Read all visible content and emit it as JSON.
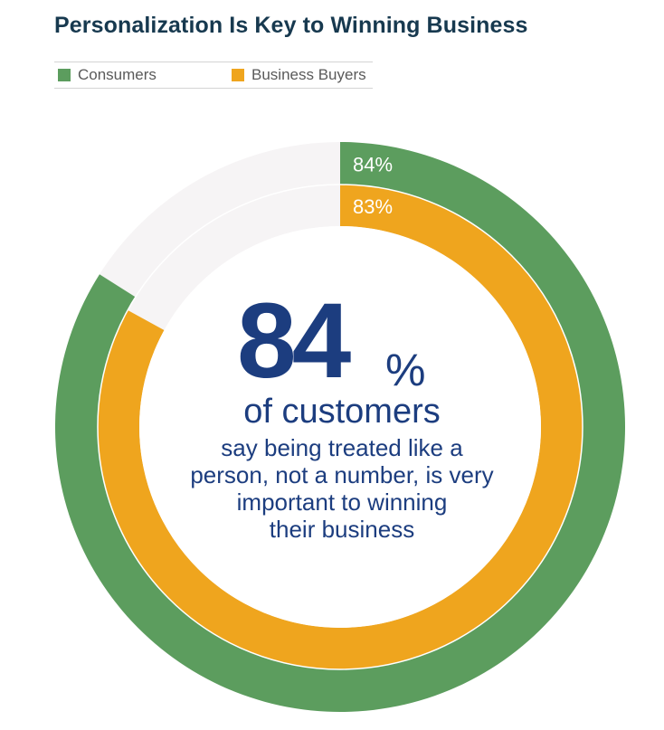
{
  "chart_data": {
    "type": "donut",
    "title": "Personalization Is Key to Winning Business",
    "legend_position": "top-left",
    "series": [
      {
        "name": "Consumers",
        "value": 84,
        "label": "84%",
        "color": "#5c9d5e"
      },
      {
        "name": "Business Buyers",
        "value": 83,
        "label": "83%",
        "color": "#efa51e"
      }
    ],
    "track_color": "#f6f4f5",
    "max_value": 100
  },
  "center": {
    "value": "84",
    "unit": "%",
    "headline": "of customers",
    "caption_lines": [
      "say being treated like a",
      "person, not a number, is very",
      "important to winning",
      "their business"
    ]
  }
}
